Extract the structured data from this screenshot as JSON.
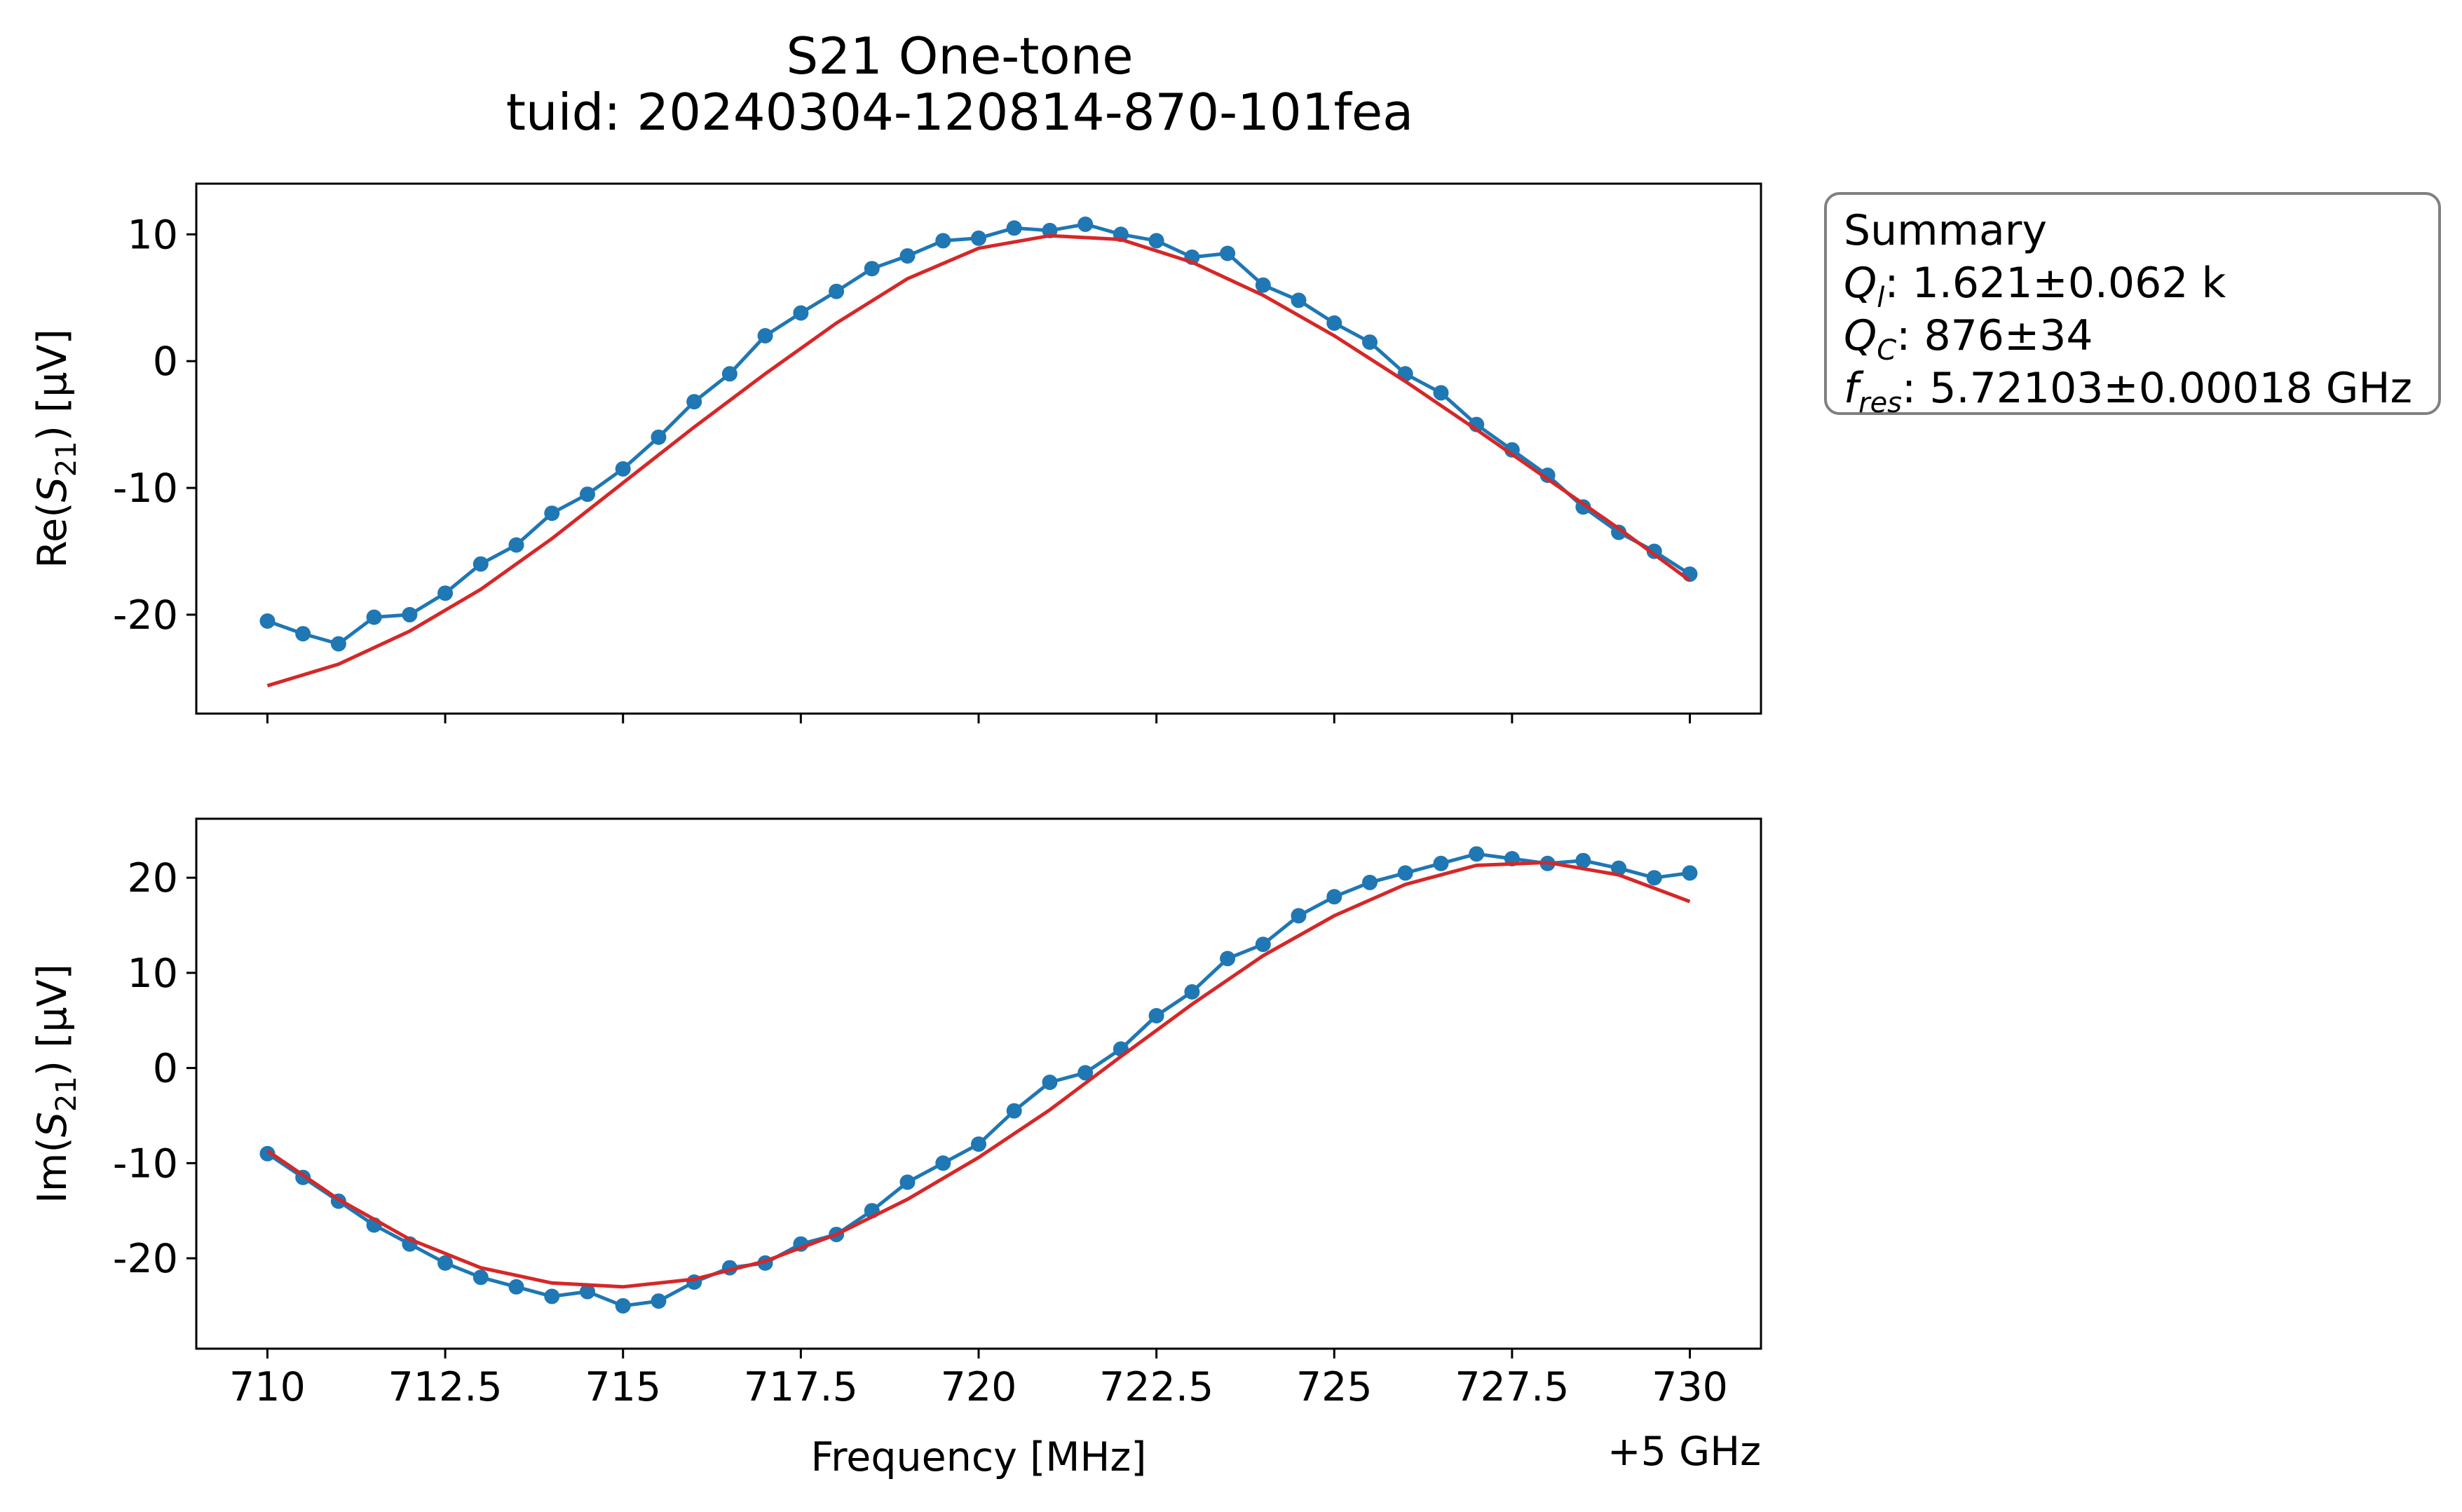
{
  "chart_data": {
    "type": "line",
    "title": "S21 One-tone",
    "subtitle": "tuid: 20240304-120814-870-101fea",
    "summary": {
      "heading": "Summary",
      "ql_symbol": "Q",
      "ql_sub": "l",
      "ql_value": ": 1.621±0.062 k",
      "qc_symbol": "Q",
      "qc_sub": "C",
      "qc_value": ": 876±34",
      "fres_symbol": "f",
      "fres_sub": "res",
      "fres_value": ": 5.72103±0.00018 GHz"
    },
    "xlabel": "Frequency [MHz]",
    "x_offset_label": "+5 GHz",
    "xlim": [
      709,
      731
    ],
    "x_ticks": [
      710,
      712.5,
      715,
      717.5,
      720,
      722.5,
      725,
      727.5,
      730
    ],
    "x_tick_labels": [
      "710",
      "712.5",
      "715",
      "717.5",
      "720",
      "722.5",
      "725",
      "727.5",
      "730"
    ],
    "colors": {
      "data": "#1f77b4",
      "fit": "#d62728"
    },
    "panels": [
      {
        "ylabel_prefix": "Re(",
        "ylabel_symbol": "S",
        "ylabel_sub": "21",
        "ylabel_suffix": ") [µV]",
        "ylim": [
          -27.8,
          14
        ],
        "y_ticks": [
          10,
          0,
          -10,
          -20
        ],
        "y_tick_labels": [
          "10",
          "0",
          "-10",
          "-20"
        ],
        "series": [
          {
            "kind": "data",
            "x": [
              710,
              710.5,
              711,
              711.5,
              712,
              712.5,
              713,
              713.5,
              714,
              714.5,
              715,
              715.5,
              716,
              716.5,
              717,
              717.5,
              718,
              718.5,
              719,
              719.5,
              720,
              720.5,
              721,
              721.5,
              722,
              722.5,
              723,
              723.5,
              724,
              724.5,
              725,
              725.5,
              726,
              726.5,
              727,
              727.5,
              728,
              728.5,
              729,
              729.5,
              730
            ],
            "y": [
              -20.5,
              -21.5,
              -22.3,
              -20.2,
              -20.0,
              -18.3,
              -16.0,
              -14.5,
              -12.0,
              -10.5,
              -8.5,
              -6.0,
              -3.2,
              -1.0,
              2.0,
              3.8,
              5.5,
              7.3,
              8.3,
              9.5,
              9.7,
              10.5,
              10.3,
              10.8,
              10.0,
              9.5,
              8.2,
              8.5,
              6.0,
              4.8,
              3.0,
              1.5,
              -1.0,
              -2.5,
              -5.0,
              -7.0,
              -9.0,
              -11.5,
              -13.5,
              -15.0,
              -16.8
            ]
          },
          {
            "kind": "fit",
            "x": [
              710,
              711,
              712,
              713,
              714,
              715,
              716,
              717,
              718,
              719,
              720,
              721,
              722,
              723,
              724,
              725,
              726,
              727,
              728,
              729,
              730
            ],
            "y": [
              -25.6,
              -23.9,
              -21.3,
              -18.0,
              -14.0,
              -9.6,
              -5.2,
              -1.0,
              3.0,
              6.5,
              8.9,
              9.9,
              9.6,
              7.8,
              5.2,
              2.0,
              -1.6,
              -5.4,
              -9.3,
              -13.2,
              -17.3
            ]
          }
        ]
      },
      {
        "ylabel_prefix": "Im(",
        "ylabel_symbol": "S",
        "ylabel_sub": "21",
        "ylabel_suffix": ") [µV]",
        "ylim": [
          -29.5,
          26.2
        ],
        "y_ticks": [
          20,
          10,
          0,
          -10,
          -20
        ],
        "y_tick_labels": [
          "20",
          "10",
          "0",
          "-10",
          "-20"
        ],
        "series": [
          {
            "kind": "data",
            "x": [
              710,
              710.5,
              711,
              711.5,
              712,
              712.5,
              713,
              713.5,
              714,
              714.5,
              715,
              715.5,
              716,
              716.5,
              717,
              717.5,
              718,
              718.5,
              719,
              719.5,
              720,
              720.5,
              721,
              721.5,
              722,
              722.5,
              723,
              723.5,
              724,
              724.5,
              725,
              725.5,
              726,
              726.5,
              727,
              727.5,
              728,
              728.5,
              729,
              729.5,
              730
            ],
            "y": [
              -9.0,
              -11.5,
              -14.0,
              -16.5,
              -18.5,
              -20.5,
              -22.0,
              -23.0,
              -24.0,
              -23.5,
              -25.0,
              -24.5,
              -22.5,
              -21.0,
              -20.5,
              -18.5,
              -17.5,
              -15.0,
              -12.0,
              -10.0,
              -8.0,
              -4.5,
              -1.5,
              -0.5,
              2.0,
              5.5,
              8.0,
              11.5,
              13.0,
              16.0,
              18.0,
              19.5,
              20.5,
              21.5,
              22.5,
              22.0,
              21.5,
              21.8,
              21.0,
              20.0,
              20.5
            ]
          },
          {
            "kind": "fit",
            "x": [
              710,
              711,
              712,
              713,
              714,
              715,
              716,
              717,
              718,
              719,
              720,
              721,
              722,
              723,
              724,
              725,
              726,
              727,
              728,
              729,
              730
            ],
            "y": [
              -8.7,
              -13.8,
              -18.0,
              -21.0,
              -22.6,
              -23.0,
              -22.2,
              -20.3,
              -17.5,
              -13.8,
              -9.4,
              -4.4,
              1.2,
              6.7,
              11.8,
              16.0,
              19.3,
              21.3,
              21.6,
              20.3,
              17.5
            ]
          }
        ]
      }
    ]
  }
}
